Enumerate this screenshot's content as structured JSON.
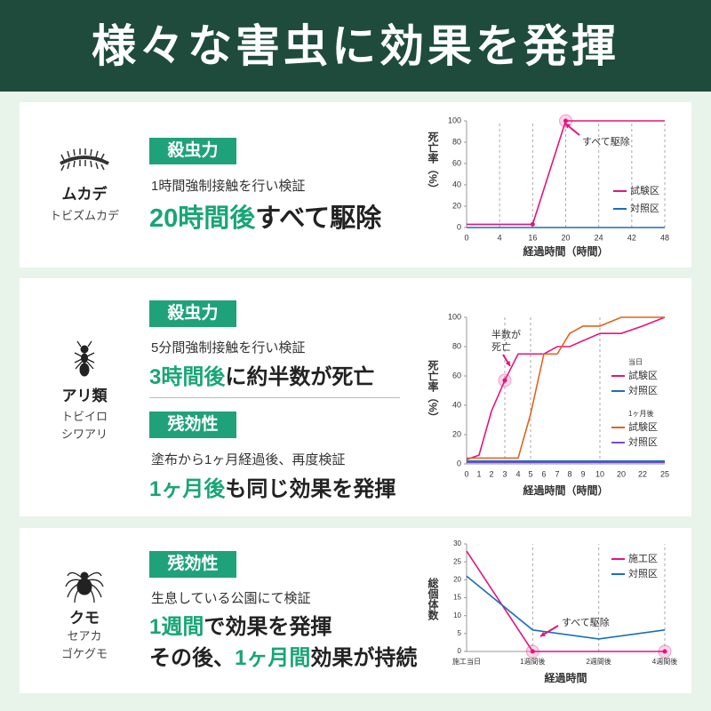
{
  "header": {
    "title": "様々な害虫に効果を発揮"
  },
  "panels": [
    {
      "name": "ムカデ",
      "subname": [
        "トビズムカデ"
      ],
      "sections": [
        {
          "badge": "殺虫力",
          "description": "1時間強制接触を行い検証",
          "headline": [
            [
              {
                "text": "20時間後",
                "highlight": true
              },
              {
                "text": "すべて駆除",
                "highlight": false
              }
            ]
          ]
        }
      ]
    },
    {
      "name": "アリ類",
      "subname": [
        "トビイロ",
        "シワアリ"
      ],
      "sections": [
        {
          "badge": "殺虫力",
          "description": "5分間強制接触を行い検証",
          "headline": [
            [
              {
                "text": "3時間後",
                "highlight": true
              },
              {
                "text": "に約半数が死亡",
                "highlight": false
              }
            ]
          ]
        },
        {
          "badge": "残効性",
          "description": "塗布から1ヶ月経過後、再度検証",
          "headline": [
            [
              {
                "text": "1ヶ月後",
                "highlight": true
              },
              {
                "text": "も同じ効果を発揮",
                "highlight": false
              }
            ]
          ]
        }
      ]
    },
    {
      "name": "クモ",
      "subname": [
        "セアカ",
        "ゴケグモ"
      ],
      "sections": [
        {
          "badge": "残効性",
          "description": "生息している公園にて検証",
          "headline": [
            [
              {
                "text": "1週間",
                "highlight": true
              },
              {
                "text": "で効果を発揮",
                "highlight": false
              }
            ],
            [
              {
                "text": "その後、",
                "highlight": false
              },
              {
                "text": "1ヶ月間",
                "highlight": true
              },
              {
                "text": "効果が持続",
                "highlight": false
              }
            ]
          ]
        }
      ]
    }
  ],
  "chart_data": [
    {
      "type": "line",
      "xlabel": "経過時間（時間）",
      "ylabel": "死亡率（%）",
      "categories": [
        "0",
        "4",
        "16",
        "20",
        "24",
        "42",
        "48"
      ],
      "ylim": [
        0,
        100
      ],
      "yticks": [
        0,
        20,
        40,
        60,
        80,
        100
      ],
      "series": [
        {
          "name": "試験区",
          "color": "#e3157e",
          "values": [
            3,
            3,
            3,
            100,
            100,
            100,
            100
          ]
        },
        {
          "name": "対照区",
          "color": "#1c6fba",
          "values": [
            0,
            0,
            0,
            0,
            0,
            0,
            0
          ]
        }
      ],
      "annotations": [
        [
          "すべて駆除"
        ]
      ]
    },
    {
      "type": "line",
      "xlabel": "経過時間（時間）",
      "ylabel": "死亡率（%）",
      "categories": [
        "0",
        "1",
        "2",
        "3",
        "4",
        "5",
        "6",
        "7",
        "8",
        "9",
        "10",
        "20",
        "22",
        "25"
      ],
      "ylim": [
        0,
        100
      ],
      "yticks": [
        0,
        20,
        40,
        60,
        80,
        100
      ],
      "legend_titles": [
        "当日",
        "1ヶ月後"
      ],
      "series": [
        {
          "name": "試験区",
          "color": "#e3157e",
          "values": [
            3,
            6,
            36,
            57,
            75,
            75,
            75,
            80,
            80,
            84,
            89,
            89,
            94,
            100
          ]
        },
        {
          "name": "対照区",
          "color": "#1c6fba",
          "values": [
            2,
            2,
            2,
            2,
            2,
            2,
            2,
            2,
            2,
            2,
            2,
            2,
            2,
            2
          ]
        },
        {
          "name": "試験区",
          "color": "#e0641c",
          "values": [
            4,
            4,
            4,
            4,
            4,
            34,
            75,
            75,
            89,
            94,
            94,
            100,
            100,
            100
          ]
        },
        {
          "name": "対照区",
          "color": "#7a4bc7",
          "values": [
            1,
            1,
            1,
            1,
            1,
            1,
            1,
            1,
            1,
            1,
            1,
            1,
            1,
            1
          ]
        }
      ],
      "annotations": [
        [
          "半数が",
          "死亡"
        ]
      ]
    },
    {
      "type": "line",
      "xlabel": "経過時間",
      "ylabel": "総個体数",
      "categories": [
        "施工当日",
        "1週間後",
        "2週間後",
        "4週間後"
      ],
      "ylim": [
        0,
        30
      ],
      "yticks": [
        0,
        5,
        10,
        15,
        20,
        25,
        30
      ],
      "series": [
        {
          "name": "施工区",
          "color": "#e3157e",
          "values": [
            28,
            0,
            0,
            0
          ]
        },
        {
          "name": "対照区",
          "color": "#1c6fba",
          "values": [
            21,
            6,
            3.5,
            6
          ]
        }
      ],
      "annotations": [
        [
          "すべて駆除"
        ]
      ]
    }
  ]
}
